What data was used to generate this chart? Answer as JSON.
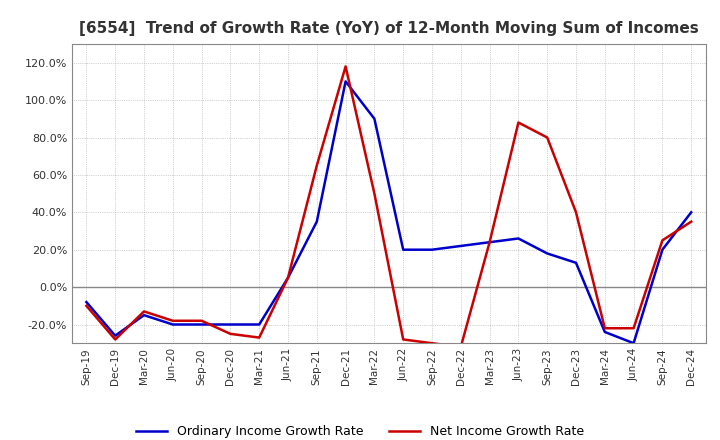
{
  "title": "[6554]  Trend of Growth Rate (YoY) of 12-Month Moving Sum of Incomes",
  "title_fontsize": 11,
  "ylim": [
    -30,
    130
  ],
  "ytick_vals": [
    -20.0,
    0.0,
    20.0,
    40.0,
    60.0,
    80.0,
    100.0,
    120.0
  ],
  "background_color": "#ffffff",
  "ordinary_color": "#0000cc",
  "net_color": "#cc0000",
  "legend_labels": [
    "Ordinary Income Growth Rate",
    "Net Income Growth Rate"
  ],
  "x_labels": [
    "Sep-19",
    "Dec-19",
    "Mar-20",
    "Jun-20",
    "Sep-20",
    "Dec-20",
    "Mar-21",
    "Jun-21",
    "Sep-21",
    "Dec-21",
    "Mar-22",
    "Jun-22",
    "Sep-22",
    "Dec-22",
    "Mar-23",
    "Jun-23",
    "Sep-23",
    "Dec-23",
    "Mar-24",
    "Jun-24",
    "Sep-24",
    "Dec-24"
  ],
  "ordinary_income": [
    -8,
    -26,
    -15,
    -20,
    -20,
    -20,
    -20,
    5,
    35,
    110,
    90,
    20,
    20,
    22,
    24,
    26,
    18,
    13,
    -24,
    -30,
    20,
    40
  ],
  "net_income": [
    -10,
    -28,
    -13,
    -18,
    -18,
    -25,
    -27,
    5,
    65,
    118,
    50,
    -28,
    -30,
    -32,
    24,
    88,
    80,
    40,
    -22,
    -22,
    25,
    35
  ],
  "grid_color": "#aaaaaa",
  "grid_style": ":",
  "zero_line_color": "#888888",
  "spine_color": "#888888"
}
